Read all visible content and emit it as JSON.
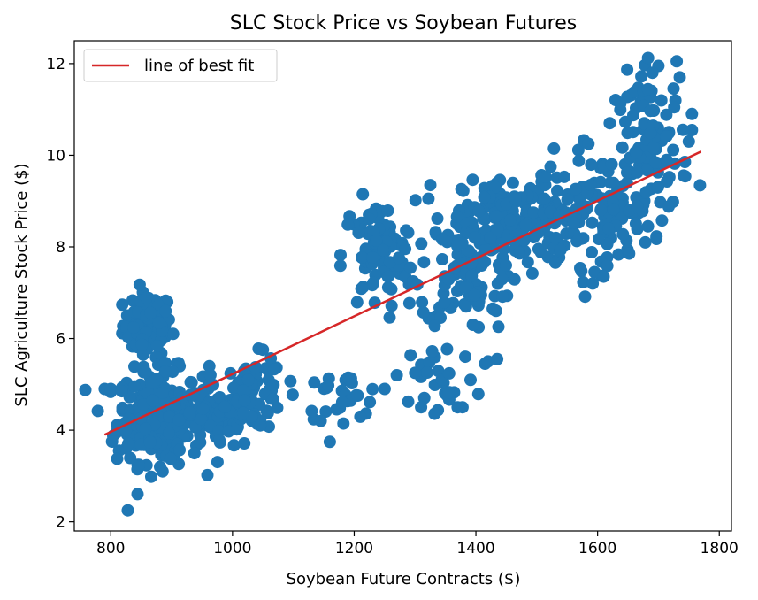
{
  "chart_data": {
    "type": "scatter",
    "title": "SLC Stock Price vs Soybean Futures",
    "xlabel": "Soybean Future Contracts ($)",
    "ylabel": "SLC Agriculture Stock Price ($)",
    "xlim": [
      740,
      1820
    ],
    "ylim": [
      1.8,
      12.5
    ],
    "xticks": [
      800,
      1000,
      1200,
      1400,
      1600,
      1800
    ],
    "yticks": [
      2,
      4,
      6,
      8,
      10,
      12
    ],
    "grid": false,
    "legend": {
      "position": "top-left",
      "entries": [
        "line of best fit"
      ]
    },
    "colors": {
      "points": "#1f77b4",
      "fit_line": "#d62728"
    },
    "fit_line": {
      "name": "line of best fit",
      "x": [
        790,
        1770
      ],
      "y": [
        3.9,
        10.08
      ]
    },
    "clusters": [
      {
        "cx": 860,
        "cy": 6.3,
        "sx": 20,
        "sy": 0.35,
        "n": 90
      },
      {
        "cx": 880,
        "cy": 4.3,
        "sx": 35,
        "sy": 0.5,
        "n": 260
      },
      {
        "cx": 975,
        "cy": 4.25,
        "sx": 30,
        "sy": 0.35,
        "n": 70
      },
      {
        "cx": 1035,
        "cy": 4.8,
        "sx": 25,
        "sy": 0.4,
        "n": 80
      },
      {
        "cx": 1180,
        "cy": 4.75,
        "sx": 35,
        "sy": 0.25,
        "n": 30
      },
      {
        "cx": 1240,
        "cy": 7.8,
        "sx": 30,
        "sy": 0.6,
        "n": 90
      },
      {
        "cx": 1340,
        "cy": 5.1,
        "sx": 30,
        "sy": 0.5,
        "n": 25
      },
      {
        "cx": 1390,
        "cy": 7.6,
        "sx": 40,
        "sy": 0.7,
        "n": 120
      },
      {
        "cx": 1470,
        "cy": 8.6,
        "sx": 45,
        "sy": 0.45,
        "n": 160
      },
      {
        "cx": 1600,
        "cy": 8.8,
        "sx": 45,
        "sy": 0.6,
        "n": 110
      },
      {
        "cx": 1690,
        "cy": 10.2,
        "sx": 30,
        "sy": 0.8,
        "n": 100
      }
    ],
    "points": [
      [
        790,
        4.9
      ],
      [
        800,
        4.9
      ],
      [
        818,
        4.85
      ],
      [
        828,
        2.25
      ],
      [
        885,
        3.1
      ],
      [
        802,
        3.75
      ],
      [
        1755,
        10.9
      ],
      [
        1730,
        12.05
      ],
      [
        1735,
        11.7
      ],
      [
        1700,
        11.95
      ],
      [
        1690,
        11.8
      ],
      [
        1620,
        10.7
      ],
      [
        1585,
        10.25
      ],
      [
        1595,
        7.45
      ],
      [
        1610,
        7.35
      ],
      [
        1592,
        7.2
      ],
      [
        1325,
        9.35
      ],
      [
        1322,
        9.05
      ],
      [
        1415,
        5.45
      ],
      [
        1420,
        5.5
      ],
      [
        1435,
        5.55
      ],
      [
        1395,
        6.3
      ],
      [
        1370,
        4.5
      ],
      [
        1378,
        4.5
      ],
      [
        1310,
        4.5
      ],
      [
        1300,
        5.25
      ],
      [
        1145,
        4.2
      ],
      [
        1250,
        4.9
      ],
      [
        1270,
        5.2
      ],
      [
        1750,
        10.3
      ],
      [
        1755,
        10.55
      ]
    ]
  }
}
